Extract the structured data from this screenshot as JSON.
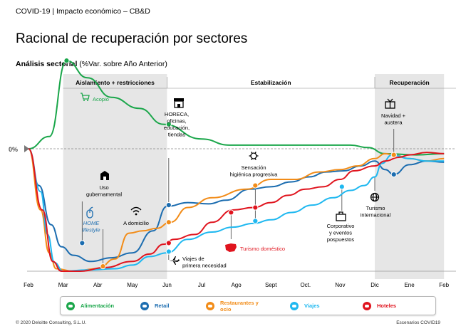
{
  "header": {
    "text": "COVID-19 | Impacto económico – CB&D"
  },
  "title": "Racional de recuperación por sectores",
  "subtitle": {
    "bold": "Análisis sectorial",
    "rest": " (%Var. sobre Año Anterior)"
  },
  "footer": {
    "left": "© 2020 Deloitte Consulting, S.L.U.",
    "right": "Escenarios COVID19"
  },
  "colors": {
    "Alimentación": "#1aa64a",
    "Retail": "#1c6db0",
    "Restaurantes": "#f28c18",
    "Viajes": "#1fb8f0",
    "Hoteles": "#e0141e",
    "phase_shade": "#e6e6e6"
  },
  "chart_data": {
    "type": "line",
    "zero_label": "0%",
    "x_labels": [
      "Feb",
      "Mar",
      "Abr",
      "May",
      "Jun",
      "Jul",
      "Ago",
      "Sept",
      "Oct.",
      "Nov",
      "Dic",
      "Ene",
      "Feb"
    ],
    "phases": [
      {
        "label": "Aislamiento + restricciones",
        "from": 1.0,
        "to": 4.0,
        "shaded": true
      },
      {
        "label": "Estabilización",
        "from": 4.0,
        "to": 10.0,
        "shaded": false
      },
      {
        "label": "Recuperación",
        "from": 10.0,
        "to": 12.0,
        "shaded": true
      }
    ],
    "series": [
      {
        "name": "Alimentación",
        "color": "#1aa64a",
        "legend": "Alimentación",
        "points": [
          [
            0,
            0
          ],
          [
            0.6,
            0.1
          ],
          [
            1.1,
            0.72
          ],
          [
            1.7,
            0.58
          ],
          [
            2.4,
            0.42
          ],
          [
            3.2,
            0.33
          ],
          [
            3.9,
            0.2
          ],
          [
            5.0,
            0.08
          ],
          [
            5.8,
            0.03
          ],
          [
            6.5,
            0.03
          ],
          [
            7.5,
            0.03
          ],
          [
            8.5,
            0.03
          ],
          [
            9.3,
            0.03
          ],
          [
            9.8,
            0.01
          ],
          [
            10.3,
            -0.04
          ],
          [
            11.2,
            -0.05
          ],
          [
            12.0,
            -0.04
          ]
        ],
        "markers": [
          [
            1.1,
            0.72
          ],
          [
            4.05,
            0.2
          ],
          [
            10.55,
            -0.05
          ]
        ]
      },
      {
        "name": "Retail",
        "color": "#1c6db0",
        "legend": "Retail",
        "points": [
          [
            0,
            0
          ],
          [
            0.3,
            -0.3
          ],
          [
            0.65,
            -0.62
          ],
          [
            0.95,
            -0.8
          ],
          [
            1.3,
            -0.87
          ],
          [
            1.8,
            -0.92
          ],
          [
            2.4,
            -0.89
          ],
          [
            3.0,
            -0.85
          ],
          [
            3.6,
            -0.67
          ],
          [
            4.0,
            -0.47
          ],
          [
            4.6,
            -0.44
          ],
          [
            5.2,
            -0.45
          ],
          [
            5.7,
            -0.42
          ],
          [
            6.4,
            -0.33
          ],
          [
            7.0,
            -0.31
          ],
          [
            7.6,
            -0.27
          ],
          [
            8.1,
            -0.23
          ],
          [
            8.6,
            -0.19
          ],
          [
            9.1,
            -0.18
          ],
          [
            9.6,
            -0.14
          ],
          [
            10.0,
            -0.1
          ],
          [
            10.3,
            -0.17
          ],
          [
            10.55,
            -0.21
          ],
          [
            11.0,
            -0.13
          ],
          [
            11.5,
            -0.1
          ],
          [
            12.0,
            -0.11
          ]
        ],
        "markers": [
          [
            1.55,
            -0.77
          ],
          [
            4.05,
            -0.46
          ],
          [
            10.55,
            -0.21
          ]
        ]
      },
      {
        "name": "Restaurantes",
        "color": "#f28c18",
        "legend": "Restaurantes y ocio",
        "points": [
          [
            0,
            0
          ],
          [
            0.35,
            -0.5
          ],
          [
            0.6,
            -0.85
          ],
          [
            0.8,
            -0.98
          ],
          [
            1.3,
            -1.0
          ],
          [
            2.0,
            -0.98
          ],
          [
            2.5,
            -0.9
          ],
          [
            2.9,
            -0.69
          ],
          [
            3.3,
            -0.67
          ],
          [
            3.7,
            -0.65
          ],
          [
            4.1,
            -0.6
          ],
          [
            4.6,
            -0.48
          ],
          [
            5.3,
            -0.4
          ],
          [
            6.3,
            -0.33
          ],
          [
            7.0,
            -0.25
          ],
          [
            7.7,
            -0.25
          ],
          [
            8.4,
            -0.19
          ],
          [
            9.0,
            -0.17
          ],
          [
            9.5,
            -0.14
          ],
          [
            10.0,
            -0.08
          ],
          [
            10.3,
            -0.04
          ],
          [
            10.55,
            -0.05
          ],
          [
            11.0,
            -0.08
          ],
          [
            11.5,
            -0.1
          ],
          [
            12.0,
            -0.08
          ]
        ],
        "markers": [
          [
            2.15,
            -0.96
          ],
          [
            4.05,
            -0.6
          ],
          [
            6.55,
            -0.3
          ],
          [
            10.55,
            -0.05
          ]
        ]
      },
      {
        "name": "Viajes",
        "color": "#1fb8f0",
        "legend": "Viajes",
        "points": [
          [
            0,
            0
          ],
          [
            0.35,
            -0.35
          ],
          [
            0.55,
            -0.7
          ],
          [
            0.75,
            -0.93
          ],
          [
            1.0,
            -1.0
          ],
          [
            1.7,
            -0.99
          ],
          [
            2.5,
            -0.98
          ],
          [
            3.0,
            -0.95
          ],
          [
            3.5,
            -0.88
          ],
          [
            4.0,
            -0.85
          ],
          [
            4.6,
            -0.74
          ],
          [
            5.3,
            -0.68
          ],
          [
            5.9,
            -0.64
          ],
          [
            6.5,
            -0.61
          ],
          [
            7.0,
            -0.58
          ],
          [
            7.6,
            -0.52
          ],
          [
            8.2,
            -0.46
          ],
          [
            8.8,
            -0.4
          ],
          [
            9.3,
            -0.34
          ],
          [
            9.7,
            -0.3
          ],
          [
            10.0,
            -0.23
          ],
          [
            10.2,
            -0.12
          ],
          [
            10.5,
            -0.05
          ],
          [
            11.0,
            -0.08
          ],
          [
            11.5,
            -0.1
          ],
          [
            12.0,
            -0.1
          ]
        ],
        "markers": [
          [
            4.05,
            -0.84
          ],
          [
            6.55,
            -0.59
          ],
          [
            9.05,
            -0.31
          ]
        ]
      },
      {
        "name": "Hoteles",
        "color": "#e0141e",
        "legend": "Hoteles",
        "points": [
          [
            0,
            0
          ],
          [
            0.4,
            -0.5
          ],
          [
            0.7,
            -0.92
          ],
          [
            0.95,
            -1.0
          ],
          [
            1.5,
            -1.0
          ],
          [
            2.2,
            -0.97
          ],
          [
            3.0,
            -0.92
          ],
          [
            3.5,
            -0.86
          ],
          [
            3.9,
            -0.78
          ],
          [
            4.2,
            -0.74
          ],
          [
            4.8,
            -0.7
          ],
          [
            5.3,
            -0.6
          ],
          [
            5.9,
            -0.5
          ],
          [
            6.5,
            -0.48
          ],
          [
            7.0,
            -0.44
          ],
          [
            7.5,
            -0.38
          ],
          [
            8.0,
            -0.33
          ],
          [
            8.5,
            -0.31
          ],
          [
            9.0,
            -0.25
          ],
          [
            9.4,
            -0.18
          ],
          [
            10.0,
            -0.14
          ],
          [
            10.3,
            -0.1
          ],
          [
            10.7,
            -0.07
          ],
          [
            11.0,
            -0.05
          ],
          [
            11.5,
            -0.03
          ],
          [
            12.0,
            -0.04
          ]
        ],
        "markers": [
          [
            4.05,
            -0.77
          ],
          [
            5.85,
            -0.52
          ],
          [
            6.55,
            -0.48
          ]
        ]
      }
    ],
    "annotations": [
      {
        "id": "acopio",
        "text": [
          "Acopio"
        ],
        "icon": "cart-icon",
        "color": "#1aa64a",
        "bold": false
      },
      {
        "id": "horeca",
        "text": [
          "HORECA,",
          "oficinas,",
          "educación,",
          "tiendas"
        ],
        "icon": "storefront-icon",
        "color": "#000000",
        "bold": false
      },
      {
        "id": "navidad",
        "text": [
          "Navidad +",
          "austera"
        ],
        "icon": "gift-icon",
        "color": "#000000",
        "bold": false
      },
      {
        "id": "sensacion",
        "text": [
          "Sensación",
          "higiénica progresiva"
        ],
        "icon": "virus-icon",
        "color": "#000000",
        "bold": false
      },
      {
        "id": "uso",
        "text": [
          "Uso",
          "gubernamental"
        ],
        "icon": "building-icon",
        "color": "#000000",
        "bold": false
      },
      {
        "id": "home",
        "text": [
          "HOME",
          "lifestyle"
        ],
        "icon": "mouse-icon",
        "color": "#1c6db0",
        "bold": false,
        "italic": true
      },
      {
        "id": "domicilio",
        "text": [
          "A domicilio"
        ],
        "icon": "wifi-icon",
        "color": "#000000",
        "bold": false
      },
      {
        "id": "corporativo",
        "text": [
          "Corporativo",
          "y eventos",
          "pospuestos"
        ],
        "icon": "briefcase-icon",
        "color": "#000000",
        "bold": false
      },
      {
        "id": "turismo",
        "text": [
          "Turismo",
          "internacional"
        ],
        "icon": "globe-icon",
        "color": "#000000",
        "bold": false
      },
      {
        "id": "viajes",
        "text": [
          "Viajes de",
          "primera necesidad"
        ],
        "icon": "plane-icon",
        "color": "#000000",
        "bold": false
      },
      {
        "id": "domestico",
        "text": [
          "Turismo doméstico"
        ],
        "icon": "spain-map-icon",
        "color": "#e0141e",
        "bold": false
      }
    ]
  }
}
